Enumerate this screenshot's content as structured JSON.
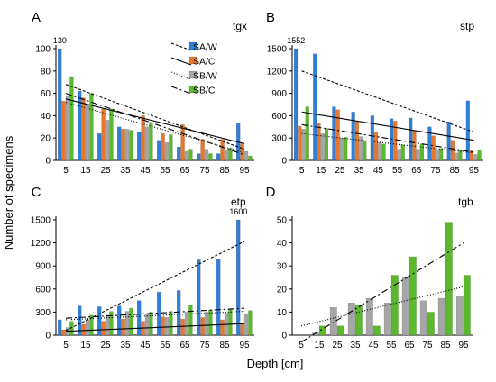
{
  "figure": {
    "ylabel": "Number of specimens",
    "xlabel": "Depth [cm]"
  },
  "colors": {
    "SA_W": "#2f7ed8",
    "SA_C": "#e8772e",
    "SB_W": "#a6a6a6",
    "SB_C": "#5cb82e"
  },
  "chart_data": [
    {
      "type": "bar",
      "panel_letter": "A",
      "tag": "tgx",
      "categories": [
        "5",
        "15",
        "25",
        "35",
        "45",
        "55",
        "65",
        "75",
        "85",
        "95"
      ],
      "ylim": [
        0,
        100
      ],
      "yticks": [
        "0",
        "20",
        "40",
        "60",
        "80",
        "100"
      ],
      "annotation": "130",
      "legend": [
        "SA/W",
        "SA/C",
        "SB/W",
        "SB/C"
      ],
      "legend_placement": "top-right",
      "series": [
        {
          "name": "SA/W",
          "values": [
            100,
            62,
            24,
            30,
            25,
            18,
            12,
            6,
            6,
            33
          ]
        },
        {
          "name": "SA/C",
          "values": [
            53,
            56,
            46,
            28,
            40,
            24,
            32,
            19,
            19,
            15
          ]
        },
        {
          "name": "SB/W",
          "values": [
            58,
            50,
            36,
            28,
            30,
            16,
            8,
            10,
            9,
            8
          ]
        },
        {
          "name": "SB/C",
          "values": [
            75,
            60,
            46,
            27,
            34,
            23,
            10,
            6,
            11,
            4
          ]
        }
      ],
      "trends": [
        {
          "start": 68,
          "end": 10,
          "dash": "3,2"
        },
        {
          "start": 55,
          "end": 15,
          "dash": ""
        },
        {
          "start": 52,
          "end": 7,
          "dash": "1,2"
        },
        {
          "start": 60,
          "end": 5,
          "dash": "7,3,2,3"
        }
      ]
    },
    {
      "type": "bar",
      "panel_letter": "B",
      "tag": "stp",
      "categories": [
        "5",
        "15",
        "25",
        "35",
        "45",
        "55",
        "65",
        "75",
        "85",
        "95"
      ],
      "ylim": [
        0,
        1500
      ],
      "yticks": [
        "0",
        "300",
        "600",
        "900",
        "1200",
        "1500"
      ],
      "annotation": "1552",
      "series": [
        {
          "name": "SA/W",
          "values": [
            1500,
            1430,
            720,
            650,
            600,
            560,
            570,
            450,
            520,
            800
          ]
        },
        {
          "name": "SA/C",
          "values": [
            460,
            500,
            680,
            520,
            380,
            530,
            400,
            330,
            270,
            130
          ]
        },
        {
          "name": "SB/W",
          "values": [
            420,
            360,
            300,
            320,
            240,
            150,
            150,
            130,
            100,
            80
          ]
        },
        {
          "name": "SB/C",
          "values": [
            720,
            430,
            310,
            250,
            220,
            210,
            220,
            160,
            140,
            140
          ]
        }
      ],
      "trends": [
        {
          "start": 1200,
          "end": 380,
          "dash": "3,2"
        },
        {
          "start": 650,
          "end": 270,
          "dash": ""
        },
        {
          "start": 480,
          "end": 110,
          "dash": "7,3,2,3"
        },
        {
          "start": 360,
          "end": 100,
          "dash": "1,2"
        }
      ]
    },
    {
      "type": "bar",
      "panel_letter": "C",
      "tag": "etp",
      "categories": [
        "5",
        "15",
        "25",
        "35",
        "45",
        "55",
        "65",
        "75",
        "85",
        "95"
      ],
      "ylim": [
        0,
        1500
      ],
      "yticks": [
        "0",
        "300",
        "600",
        "900",
        "1200",
        "1500"
      ],
      "annotation": "1600",
      "series": [
        {
          "name": "SA/W",
          "values": [
            200,
            380,
            370,
            380,
            450,
            560,
            580,
            980,
            990,
            1500
          ]
        },
        {
          "name": "SA/C",
          "values": [
            70,
            140,
            180,
            210,
            180,
            240,
            210,
            230,
            200,
            160
          ]
        },
        {
          "name": "SB/W",
          "values": [
            100,
            200,
            260,
            310,
            270,
            230,
            300,
            300,
            290,
            280
          ]
        },
        {
          "name": "SB/C",
          "values": [
            180,
            260,
            310,
            350,
            300,
            310,
            390,
            330,
            340,
            320
          ]
        }
      ],
      "trends": [
        {
          "start": 60,
          "end": 1220,
          "dash": "3,2"
        },
        {
          "start": 50,
          "end": 150,
          "dash": ""
        },
        {
          "start": 220,
          "end": 350,
          "dash": "7,3,2,3"
        },
        {
          "start": 200,
          "end": 310,
          "dash": "1,2"
        }
      ]
    },
    {
      "type": "bar",
      "panel_letter": "D",
      "tag": "tgb",
      "categories": [
        "5",
        "15",
        "25",
        "35",
        "45",
        "55",
        "65",
        "75",
        "85",
        "95"
      ],
      "ylim": [
        0,
        50
      ],
      "yticks": [
        "0",
        "10",
        "20",
        "30",
        "40",
        "50"
      ],
      "series": [
        {
          "name": "SB/W",
          "values": [
            0,
            1,
            12,
            14,
            16,
            14,
            25,
            15,
            16,
            17
          ]
        },
        {
          "name": "SB/C",
          "values": [
            0,
            4,
            4,
            13,
            4,
            26,
            34,
            10,
            49,
            26
          ]
        }
      ],
      "trends": [
        {
          "start": -3,
          "end": 40,
          "dash": "7,3,2,3"
        },
        {
          "start": 4,
          "end": 21,
          "dash": "1,2"
        }
      ]
    }
  ]
}
